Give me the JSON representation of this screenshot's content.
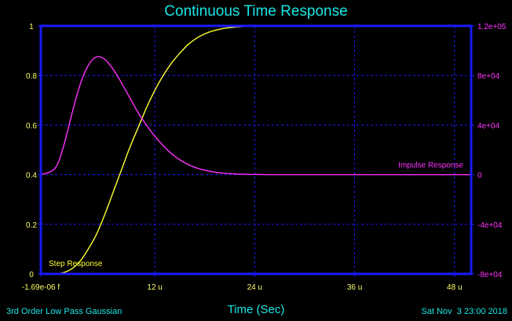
{
  "colors": {
    "background": "#000000",
    "frame": "#1a1aff",
    "grid": "#1a1aff",
    "title": "#19e6e6",
    "step": "#ffff33",
    "impulse": "#ff33ff",
    "left_axis_ticks": "#ffff66",
    "right_axis_ticks": "#ff33ff"
  },
  "footer": {
    "left_text": "3rd Order Low Pass Gaussian",
    "right_text": "Sat Nov  3 23:00 2018"
  },
  "chart_data": {
    "type": "line",
    "title": "Continuous Time Response",
    "xlabel": "Time (Sec)",
    "ylabel_left": "",
    "ylabel_right": "",
    "xlim": [
      -1.69e-06,
      5e-05
    ],
    "ylim_left": [
      0,
      1
    ],
    "ylim_right": [
      -80000,
      120000
    ],
    "grid": true,
    "x_tick_labels": [
      {
        "value": -1.69e-06,
        "label": "-1.69e-06 f"
      },
      {
        "value": 1.2e-05,
        "label": "12 u"
      },
      {
        "value": 2.4e-05,
        "label": "24 u"
      },
      {
        "value": 3.6e-05,
        "label": "36 u"
      },
      {
        "value": 4.8e-05,
        "label": "48 u"
      }
    ],
    "y_left_tick_labels": [
      {
        "value": 0,
        "label": "0"
      },
      {
        "value": 0.2,
        "label": "0.2"
      },
      {
        "value": 0.4,
        "label": "0.4"
      },
      {
        "value": 0.6,
        "label": "0.6"
      },
      {
        "value": 0.8,
        "label": "0.8"
      },
      {
        "value": 1,
        "label": "1"
      }
    ],
    "y_right_tick_labels": [
      {
        "value": -80000,
        "label": "-8e+04"
      },
      {
        "value": -40000,
        "label": "-4e+04"
      },
      {
        "value": 0,
        "label": "0"
      },
      {
        "value": 40000,
        "label": "4e+04"
      },
      {
        "value": 80000,
        "label": "8e+04"
      },
      {
        "value": 120000,
        "label": "1.2e+05"
      }
    ],
    "series": [
      {
        "name": "Step Response",
        "axis": "left",
        "color": "#ffff33",
        "x": [
          -1.69e-06,
          0,
          1e-06,
          2e-06,
          3e-06,
          4e-06,
          5e-06,
          6e-06,
          7e-06,
          8e-06,
          9e-06,
          1e-05,
          1.1e-05,
          1.2e-05,
          1.3e-05,
          1.4e-05,
          1.5e-05,
          1.6e-05,
          1.7e-05,
          1.8e-05,
          1.9e-05,
          2e-05,
          2.1e-05,
          2.2e-05,
          2.3e-05,
          2.4e-05,
          2.6e-05,
          2.8e-05,
          3e-05,
          3.5e-05,
          4e-05,
          4.5e-05,
          5e-05
        ],
        "values": [
          0,
          0,
          0.005,
          0.02,
          0.05,
          0.1,
          0.16,
          0.24,
          0.33,
          0.42,
          0.51,
          0.59,
          0.67,
          0.74,
          0.8,
          0.85,
          0.89,
          0.925,
          0.95,
          0.968,
          0.98,
          0.988,
          0.993,
          0.996,
          0.998,
          0.999,
          1,
          1,
          1,
          1,
          1,
          1,
          1
        ]
      },
      {
        "name": "Impulse Response",
        "axis": "right",
        "color": "#ff33ff",
        "x": [
          -1.69e-06,
          0,
          1e-06,
          2e-06,
          3e-06,
          4e-06,
          5e-06,
          6e-06,
          7e-06,
          8e-06,
          9e-06,
          1e-05,
          1.1e-05,
          1.2e-05,
          1.3e-05,
          1.4e-05,
          1.5e-05,
          1.6e-05,
          1.7e-05,
          1.8e-05,
          1.9e-05,
          2e-05,
          2.2e-05,
          2.4e-05,
          2.6e-05,
          2.8e-05,
          3e-05,
          3.5e-05,
          4e-05,
          4.5e-05,
          5e-05
        ],
        "values": [
          0,
          5000,
          22000,
          48000,
          72000,
          88000,
          95000,
          93000,
          85000,
          74000,
          62000,
          50000,
          40000,
          31000,
          23500,
          17000,
          12000,
          8200,
          5500,
          3600,
          2300,
          1400,
          500,
          150,
          40,
          10,
          0,
          0,
          0,
          0,
          0
        ]
      }
    ],
    "annotations": [
      {
        "text": "Step Response",
        "series": "Step Response"
      },
      {
        "text": "Impulse Response",
        "series": "Impulse Response"
      }
    ]
  }
}
